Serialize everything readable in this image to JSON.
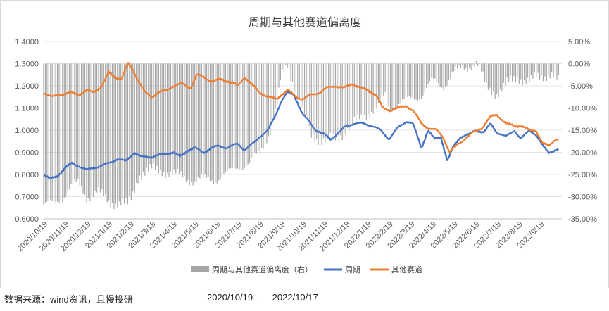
{
  "chart_data": {
    "type": "bar+line",
    "title": "周期与其他赛道偏离度",
    "left_axis": {
      "min": 0.6,
      "max": 1.4,
      "ticks": [
        "1.4000",
        "1.3000",
        "1.2000",
        "1.1000",
        "1.0000",
        "0.9000",
        "0.8000",
        "0.7000",
        "0.6000"
      ]
    },
    "right_axis": {
      "min": -35,
      "max": 5,
      "unit": "%",
      "ticks": [
        "5.00%",
        "0.00%",
        "-5.00%",
        "-10.00%",
        "-15.00%",
        "-20.00%",
        "-25.00%",
        "-30.00%",
        "-35.00%"
      ]
    },
    "x_labels": [
      "2020/10/19",
      "2020/11/19",
      "2020/12/19",
      "2021/1/19",
      "2021/2/19",
      "2021/3/19",
      "2021/4/19",
      "2021/5/19",
      "2021/6/19",
      "2021/7/19",
      "2021/8/19",
      "2021/9/19",
      "2021/10/19",
      "2021/11/19",
      "2021/12/19",
      "2022/1/19",
      "2022/2/19",
      "2022/3/19",
      "2022/4/19",
      "2022/5/19",
      "2022/6/19",
      "2022/7/19",
      "2022/8/19",
      "2022/9/19"
    ],
    "series": [
      {
        "name": "周期与其他赛道偏离度（右）",
        "kind": "bar",
        "axis": "right",
        "color": "#a6a6a6",
        "keypoints": [
          [
            0,
            -32
          ],
          [
            0.5,
            -31.5
          ],
          [
            0.9,
            -30
          ],
          [
            1.2,
            -28
          ],
          [
            1.6,
            -27
          ],
          [
            2.0,
            -30
          ],
          [
            2.5,
            -29
          ],
          [
            3.0,
            -31
          ],
          [
            3.5,
            -31.5
          ],
          [
            3.9,
            -32
          ],
          [
            4.1,
            -30
          ],
          [
            4.4,
            -25
          ],
          [
            5.0,
            -24
          ],
          [
            5.5,
            -24
          ],
          [
            6.0,
            -25
          ],
          [
            6.5,
            -25.5
          ],
          [
            7.0,
            -26.5
          ],
          [
            7.5,
            -26
          ],
          [
            8.0,
            -26
          ],
          [
            8.5,
            -25
          ],
          [
            9.0,
            -23
          ],
          [
            9.5,
            -23
          ],
          [
            10.0,
            -20
          ],
          [
            10.5,
            -15
          ],
          [
            10.8,
            -10
          ],
          [
            11.0,
            -3
          ],
          [
            11.3,
            0
          ],
          [
            11.6,
            -5
          ],
          [
            12.0,
            -11
          ],
          [
            12.4,
            -16
          ],
          [
            13.0,
            -17.5
          ],
          [
            13.5,
            -17
          ],
          [
            14.0,
            -15
          ],
          [
            14.5,
            -13
          ],
          [
            15.0,
            -11
          ],
          [
            15.5,
            -10
          ],
          [
            15.8,
            -7
          ],
          [
            16.0,
            -10
          ],
          [
            16.5,
            -9
          ],
          [
            17.0,
            -8
          ],
          [
            17.5,
            -7
          ],
          [
            18.0,
            -4
          ],
          [
            18.5,
            -5
          ],
          [
            19.0,
            -2
          ],
          [
            19.5,
            -1
          ],
          [
            20.0,
            0.5
          ],
          [
            20.2,
            -1
          ],
          [
            20.5,
            -5.5
          ],
          [
            21.0,
            -6.5
          ],
          [
            21.5,
            -4.5
          ],
          [
            22.0,
            -3
          ],
          [
            22.5,
            -4
          ],
          [
            23.0,
            -3
          ],
          [
            23.5,
            -2
          ],
          [
            23.8,
            -4
          ]
        ]
      },
      {
        "name": "周期",
        "kind": "line",
        "axis": "left",
        "color": "#4472c4",
        "keypoints": [
          [
            0,
            0.8
          ],
          [
            0.3,
            0.78
          ],
          [
            0.6,
            0.79
          ],
          [
            1.0,
            0.83
          ],
          [
            1.3,
            0.85
          ],
          [
            1.6,
            0.84
          ],
          [
            2.0,
            0.82
          ],
          [
            2.3,
            0.83
          ],
          [
            2.7,
            0.84
          ],
          [
            3.0,
            0.85
          ],
          [
            3.4,
            0.87
          ],
          [
            3.8,
            0.86
          ],
          [
            4.2,
            0.9
          ],
          [
            4.5,
            0.88
          ],
          [
            5.0,
            0.88
          ],
          [
            5.5,
            0.89
          ],
          [
            6.0,
            0.9
          ],
          [
            6.3,
            0.88
          ],
          [
            6.7,
            0.91
          ],
          [
            7.0,
            0.92
          ],
          [
            7.4,
            0.9
          ],
          [
            7.8,
            0.92
          ],
          [
            8.1,
            0.93
          ],
          [
            8.5,
            0.92
          ],
          [
            9.0,
            0.94
          ],
          [
            9.3,
            0.91
          ],
          [
            9.7,
            0.94
          ],
          [
            10.0,
            0.97
          ],
          [
            10.4,
            1.0
          ],
          [
            10.7,
            1.06
          ],
          [
            11.0,
            1.13
          ],
          [
            11.3,
            1.17
          ],
          [
            11.6,
            1.16
          ],
          [
            12.0,
            1.07
          ],
          [
            12.3,
            1.04
          ],
          [
            12.6,
            1.0
          ],
          [
            13.0,
            0.98
          ],
          [
            13.3,
            0.96
          ],
          [
            13.7,
            0.99
          ],
          [
            14.0,
            1.02
          ],
          [
            14.4,
            1.03
          ],
          [
            14.8,
            1.03
          ],
          [
            15.2,
            1.02
          ],
          [
            15.6,
            1.0
          ],
          [
            16.0,
            0.96
          ],
          [
            16.4,
            1.01
          ],
          [
            16.8,
            1.04
          ],
          [
            17.1,
            1.03
          ],
          [
            17.5,
            0.92
          ],
          [
            17.8,
            1.0
          ],
          [
            18.1,
            0.96
          ],
          [
            18.4,
            0.97
          ],
          [
            18.7,
            0.86
          ],
          [
            19.0,
            0.93
          ],
          [
            19.3,
            0.97
          ],
          [
            19.7,
            0.98
          ],
          [
            20.0,
            1.0
          ],
          [
            20.4,
            0.99
          ],
          [
            20.7,
            1.03
          ],
          [
            21.0,
            0.99
          ],
          [
            21.4,
            0.97
          ],
          [
            21.8,
            1.0
          ],
          [
            22.1,
            0.96
          ],
          [
            22.5,
            1.0
          ],
          [
            22.8,
            0.98
          ],
          [
            23.1,
            0.93
          ],
          [
            23.4,
            0.9
          ],
          [
            23.7,
            0.91
          ]
        ]
      },
      {
        "name": "其他赛道",
        "kind": "line",
        "axis": "left",
        "color": "#ed7d31",
        "keypoints": [
          [
            0,
            1.17
          ],
          [
            0.4,
            1.15
          ],
          [
            0.8,
            1.16
          ],
          [
            1.2,
            1.17
          ],
          [
            1.6,
            1.16
          ],
          [
            2.0,
            1.18
          ],
          [
            2.3,
            1.17
          ],
          [
            2.7,
            1.2
          ],
          [
            3.0,
            1.26
          ],
          [
            3.3,
            1.24
          ],
          [
            3.6,
            1.23
          ],
          [
            3.9,
            1.3
          ],
          [
            4.1,
            1.28
          ],
          [
            4.4,
            1.22
          ],
          [
            4.7,
            1.17
          ],
          [
            5.0,
            1.15
          ],
          [
            5.3,
            1.17
          ],
          [
            5.7,
            1.18
          ],
          [
            6.0,
            1.2
          ],
          [
            6.4,
            1.21
          ],
          [
            6.8,
            1.19
          ],
          [
            7.1,
            1.25
          ],
          [
            7.4,
            1.24
          ],
          [
            7.8,
            1.22
          ],
          [
            8.2,
            1.23
          ],
          [
            8.6,
            1.22
          ],
          [
            9.0,
            1.2
          ],
          [
            9.3,
            1.24
          ],
          [
            9.6,
            1.21
          ],
          [
            10.0,
            1.17
          ],
          [
            10.4,
            1.15
          ],
          [
            10.8,
            1.14
          ],
          [
            11.0,
            1.16
          ],
          [
            11.3,
            1.18
          ],
          [
            11.7,
            1.15
          ],
          [
            12.0,
            1.14
          ],
          [
            12.4,
            1.16
          ],
          [
            12.8,
            1.17
          ],
          [
            13.1,
            1.19
          ],
          [
            13.5,
            1.2
          ],
          [
            13.9,
            1.19
          ],
          [
            14.3,
            1.21
          ],
          [
            14.7,
            1.19
          ],
          [
            15.0,
            1.18
          ],
          [
            15.4,
            1.16
          ],
          [
            15.7,
            1.1
          ],
          [
            16.0,
            1.09
          ],
          [
            16.4,
            1.1
          ],
          [
            16.8,
            1.11
          ],
          [
            17.1,
            1.09
          ],
          [
            17.5,
            1.03
          ],
          [
            17.8,
            1.01
          ],
          [
            18.2,
            1.0
          ],
          [
            18.5,
            0.97
          ],
          [
            18.8,
            0.9
          ],
          [
            19.1,
            0.93
          ],
          [
            19.5,
            0.96
          ],
          [
            19.9,
            0.99
          ],
          [
            20.3,
            1.01
          ],
          [
            20.7,
            1.06
          ],
          [
            21.0,
            1.07
          ],
          [
            21.4,
            1.03
          ],
          [
            21.8,
            1.02
          ],
          [
            22.1,
            1.02
          ],
          [
            22.5,
            1.0
          ],
          [
            22.8,
            1.0
          ],
          [
            23.1,
            0.94
          ],
          [
            23.4,
            0.93
          ],
          [
            23.7,
            0.96
          ]
        ]
      }
    ],
    "legend": [
      "周期与其他赛道偏离度（右）",
      "周期",
      "其他赛道"
    ],
    "legend_position": "bottom",
    "grid": "horizontal"
  },
  "footer": {
    "source": "数据来源：wind资讯，且慢投研",
    "range_start": "2020/10/19",
    "range_sep": "-",
    "range_end": "2022/10/17"
  }
}
